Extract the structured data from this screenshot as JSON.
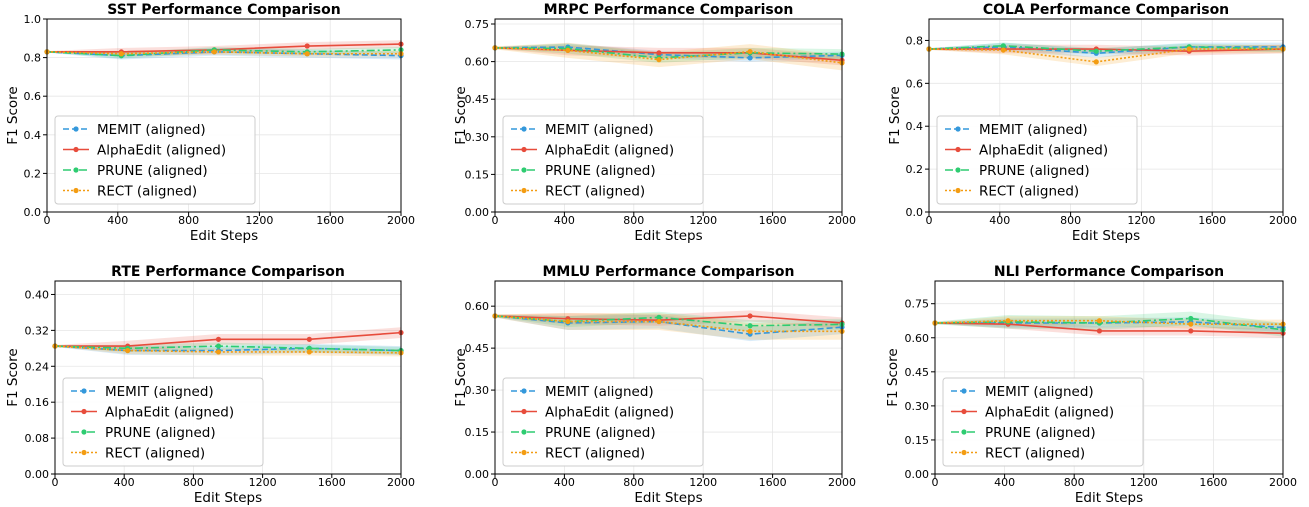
{
  "colors": {
    "MEMIT (aligned)": "#3498db",
    "AlphaEdit (aligned)": "#e74c3c",
    "PRUNE (aligned)": "#2ecc71",
    "RECT (aligned)": "#f39c12"
  },
  "chart_data": [
    {
      "type": "line",
      "title": "SST Performance Comparison",
      "xlabel": "Edit Steps",
      "ylabel": "F1 Score",
      "xlim": [
        0,
        2000
      ],
      "ylim": [
        0,
        1.0
      ],
      "xticks": [
        "0",
        "400",
        "800",
        "1200",
        "1600",
        "2000"
      ],
      "yticks": [
        "0.0",
        "0.2",
        "0.4",
        "0.6",
        "0.8",
        "1.0"
      ],
      "grid": true,
      "legend_position": "lower-left",
      "x": [
        0,
        420,
        945,
        1470,
        2000
      ],
      "series": [
        {
          "name": "MEMIT (aligned)",
          "values": [
            0.83,
            0.81,
            0.83,
            0.82,
            0.81
          ],
          "band": 0.02
        },
        {
          "name": "AlphaEdit (aligned)",
          "values": [
            0.83,
            0.83,
            0.84,
            0.86,
            0.87
          ],
          "band": 0.02
        },
        {
          "name": "PRUNE (aligned)",
          "values": [
            0.83,
            0.81,
            0.84,
            0.83,
            0.84
          ],
          "band": 0.015
        },
        {
          "name": "RECT (aligned)",
          "values": [
            0.83,
            0.82,
            0.83,
            0.82,
            0.82
          ],
          "band": 0.015
        }
      ]
    },
    {
      "type": "line",
      "title": "MRPC Performance Comparison",
      "xlabel": "Edit Steps",
      "ylabel": "F1 Score",
      "xlim": [
        0,
        2000
      ],
      "ylim": [
        0,
        0.77
      ],
      "xticks": [
        "0",
        "400",
        "800",
        "1200",
        "1600",
        "2000"
      ],
      "yticks": [
        "0.00",
        "0.15",
        "0.30",
        "0.45",
        "0.60",
        "0.75"
      ],
      "grid": true,
      "legend_position": "lower-left",
      "x": [
        0,
        420,
        945,
        1470,
        2000
      ],
      "series": [
        {
          "name": "MEMIT (aligned)",
          "values": [
            0.655,
            0.658,
            0.628,
            0.615,
            0.625
          ],
          "band": 0.015
        },
        {
          "name": "AlphaEdit (aligned)",
          "values": [
            0.655,
            0.645,
            0.635,
            0.635,
            0.605
          ],
          "band": 0.02
        },
        {
          "name": "PRUNE (aligned)",
          "values": [
            0.655,
            0.652,
            0.615,
            0.635,
            0.63
          ],
          "band": 0.02
        },
        {
          "name": "RECT (aligned)",
          "values": [
            0.655,
            0.645,
            0.608,
            0.64,
            0.595
          ],
          "band": 0.03
        }
      ]
    },
    {
      "type": "line",
      "title": "COLA Performance Comparison",
      "xlabel": "Edit Steps",
      "ylabel": "F1 Score",
      "xlim": [
        0,
        2000
      ],
      "ylim": [
        0,
        0.9
      ],
      "xticks": [
        "0",
        "400",
        "800",
        "1200",
        "1600",
        "2000"
      ],
      "yticks": [
        "0.0",
        "0.2",
        "0.4",
        "0.6",
        "0.8"
      ],
      "grid": true,
      "legend_position": "lower-left",
      "x": [
        0,
        420,
        945,
        1470,
        2000
      ],
      "series": [
        {
          "name": "MEMIT (aligned)",
          "values": [
            0.76,
            0.77,
            0.74,
            0.77,
            0.77
          ],
          "band": 0.02
        },
        {
          "name": "AlphaEdit (aligned)",
          "values": [
            0.76,
            0.76,
            0.76,
            0.75,
            0.76
          ],
          "band": 0.02
        },
        {
          "name": "PRUNE (aligned)",
          "values": [
            0.76,
            0.775,
            0.75,
            0.77,
            0.76
          ],
          "band": 0.015
        },
        {
          "name": "RECT (aligned)",
          "values": [
            0.76,
            0.755,
            0.7,
            0.76,
            0.76
          ],
          "band": 0.02
        }
      ]
    },
    {
      "type": "line",
      "title": "RTE Performance Comparison",
      "xlabel": "Edit Steps",
      "ylabel": "F1 Score",
      "xlim": [
        0,
        2000
      ],
      "ylim": [
        0,
        0.43
      ],
      "xticks": [
        "0",
        "400",
        "800",
        "1200",
        "1600",
        "2000"
      ],
      "yticks": [
        "0.00",
        "0.08",
        "0.16",
        "0.24",
        "0.32",
        "0.40"
      ],
      "grid": true,
      "legend_position": "lower-left",
      "x": [
        0,
        420,
        945,
        1470,
        2000
      ],
      "series": [
        {
          "name": "MEMIT (aligned)",
          "values": [
            0.285,
            0.275,
            0.275,
            0.28,
            0.275
          ],
          "band": 0.01
        },
        {
          "name": "AlphaEdit (aligned)",
          "values": [
            0.285,
            0.285,
            0.3,
            0.3,
            0.315
          ],
          "band": 0.012
        },
        {
          "name": "PRUNE (aligned)",
          "values": [
            0.285,
            0.28,
            0.285,
            0.28,
            0.275
          ],
          "band": 0.008
        },
        {
          "name": "RECT (aligned)",
          "values": [
            0.285,
            0.275,
            0.272,
            0.272,
            0.27
          ],
          "band": 0.008
        }
      ]
    },
    {
      "type": "line",
      "title": "MMLU Performance Comparison",
      "xlabel": "Edit Steps",
      "ylabel": "F1 Score",
      "xlim": [
        0,
        2000
      ],
      "ylim": [
        0,
        0.69
      ],
      "xticks": [
        "0",
        "400",
        "800",
        "1200",
        "1600",
        "2000"
      ],
      "yticks": [
        "0.00",
        "0.15",
        "0.30",
        "0.45",
        "0.60"
      ],
      "grid": true,
      "legend_position": "lower-left",
      "x": [
        0,
        420,
        945,
        1470,
        2000
      ],
      "series": [
        {
          "name": "MEMIT (aligned)",
          "values": [
            0.565,
            0.54,
            0.545,
            0.5,
            0.525
          ],
          "band": 0.025
        },
        {
          "name": "AlphaEdit (aligned)",
          "values": [
            0.565,
            0.555,
            0.55,
            0.565,
            0.54
          ],
          "band": 0.02
        },
        {
          "name": "PRUNE (aligned)",
          "values": [
            0.565,
            0.545,
            0.56,
            0.53,
            0.535
          ],
          "band": 0.02
        },
        {
          "name": "RECT (aligned)",
          "values": [
            0.565,
            0.545,
            0.545,
            0.51,
            0.51
          ],
          "band": 0.03
        }
      ]
    },
    {
      "type": "line",
      "title": "NLI Performance Comparison",
      "xlabel": "Edit Steps",
      "ylabel": "F1 Score",
      "xlim": [
        0,
        2000
      ],
      "ylim": [
        0,
        0.85
      ],
      "xticks": [
        "0",
        "400",
        "800",
        "1200",
        "1600",
        "2000"
      ],
      "yticks": [
        "0.00",
        "0.15",
        "0.30",
        "0.45",
        "0.60",
        "0.75"
      ],
      "grid": true,
      "legend_position": "lower-left",
      "x": [
        0,
        420,
        945,
        1470,
        2000
      ],
      "series": [
        {
          "name": "MEMIT (aligned)",
          "values": [
            0.665,
            0.665,
            0.665,
            0.67,
            0.645
          ],
          "band": 0.02
        },
        {
          "name": "AlphaEdit (aligned)",
          "values": [
            0.665,
            0.66,
            0.63,
            0.63,
            0.62
          ],
          "band": 0.02
        },
        {
          "name": "PRUNE (aligned)",
          "values": [
            0.665,
            0.67,
            0.665,
            0.685,
            0.635
          ],
          "band": 0.03
        },
        {
          "name": "RECT (aligned)",
          "values": [
            0.665,
            0.675,
            0.675,
            0.66,
            0.66
          ],
          "band": 0.02
        }
      ]
    }
  ]
}
